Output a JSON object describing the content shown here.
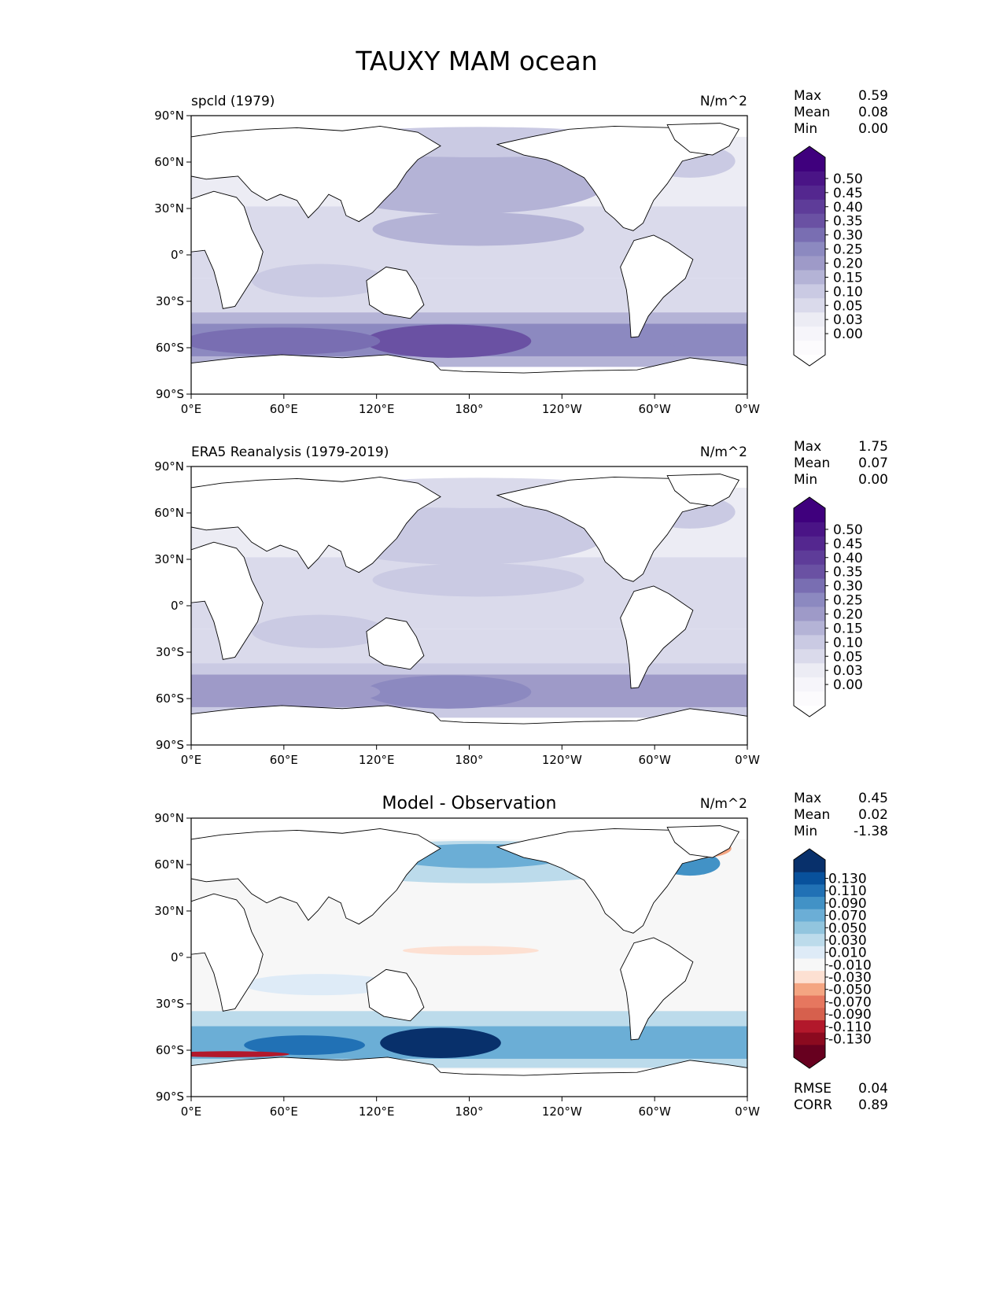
{
  "figure": {
    "title": "TAUXY MAM ocean"
  },
  "axes": {
    "lat_ticks": [
      "90°N",
      "60°N",
      "30°N",
      "0°",
      "30°S",
      "60°S",
      "90°S"
    ],
    "lon_ticks": [
      "0°E",
      "60°E",
      "120°E",
      "180°",
      "120°W",
      "60°W",
      "0°W"
    ]
  },
  "panels": [
    {
      "title": "spcld (1979)",
      "units": "N/m^2",
      "stats": [
        {
          "label": "Max",
          "value": "0.59"
        },
        {
          "label": "Mean",
          "value": "0.08"
        },
        {
          "label": "Min",
          "value": "0.00"
        }
      ],
      "colorbar": {
        "labels": [
          "0.50",
          "0.45",
          "0.40",
          "0.35",
          "0.30",
          "0.25",
          "0.20",
          "0.15",
          "0.10",
          "0.05",
          "0.03",
          "0.00"
        ],
        "colors": [
          "#3f007d",
          "#4a1486",
          "#54278f",
          "#5e3c99",
          "#6a51a3",
          "#796eb2",
          "#8c89c0",
          "#9e9ac8",
          "#b4b3d6",
          "#cacae3",
          "#dadaeb",
          "#ececf4",
          "#f6f5fa",
          "#fcfbfd"
        ],
        "extend_top_color": "#3f007d",
        "extend_bottom_color": "#ffffff"
      }
    },
    {
      "title": "ERA5 Reanalysis (1979-2019)",
      "units": "N/m^2",
      "stats": [
        {
          "label": "Max",
          "value": "1.75"
        },
        {
          "label": "Mean",
          "value": "0.07"
        },
        {
          "label": "Min",
          "value": "0.00"
        }
      ],
      "colorbar": {
        "labels": [
          "0.50",
          "0.45",
          "0.40",
          "0.35",
          "0.30",
          "0.25",
          "0.20",
          "0.15",
          "0.10",
          "0.05",
          "0.03",
          "0.00"
        ],
        "colors": [
          "#3f007d",
          "#4a1486",
          "#54278f",
          "#5e3c99",
          "#6a51a3",
          "#796eb2",
          "#8c89c0",
          "#9e9ac8",
          "#b4b3d6",
          "#cacae3",
          "#dadaeb",
          "#ececf4",
          "#f6f5fa",
          "#fcfbfd"
        ],
        "extend_top_color": "#3f007d",
        "extend_bottom_color": "#ffffff"
      }
    },
    {
      "title": "Model - Observation",
      "units": "N/m^2",
      "stats": [
        {
          "label": "Max",
          "value": "0.45"
        },
        {
          "label": "Mean",
          "value": "0.02"
        },
        {
          "label": "Min",
          "value": "-1.38"
        }
      ],
      "colorbar": {
        "labels": [
          "0.130",
          "0.110",
          "0.090",
          "0.070",
          "0.050",
          "0.030",
          "0.010",
          "-0.010",
          "-0.030",
          "-0.050",
          "-0.070",
          "-0.090",
          "-0.110",
          "-0.130"
        ],
        "colors": [
          "#08306b",
          "#08519c",
          "#2171b5",
          "#4292c6",
          "#6baed6",
          "#92c5de",
          "#bcdbeb",
          "#deebf7",
          "#f7f7f7",
          "#fde0d2",
          "#f4a582",
          "#e6775f",
          "#d6604d",
          "#b2182b",
          "#8b0a1f",
          "#67001f"
        ],
        "extend_top_color": "#08306b",
        "extend_bottom_color": "#67001f"
      },
      "metrics": [
        {
          "label": "RMSE",
          "value": "0.04"
        },
        {
          "label": "CORR",
          "value": "0.89"
        }
      ]
    }
  ]
}
